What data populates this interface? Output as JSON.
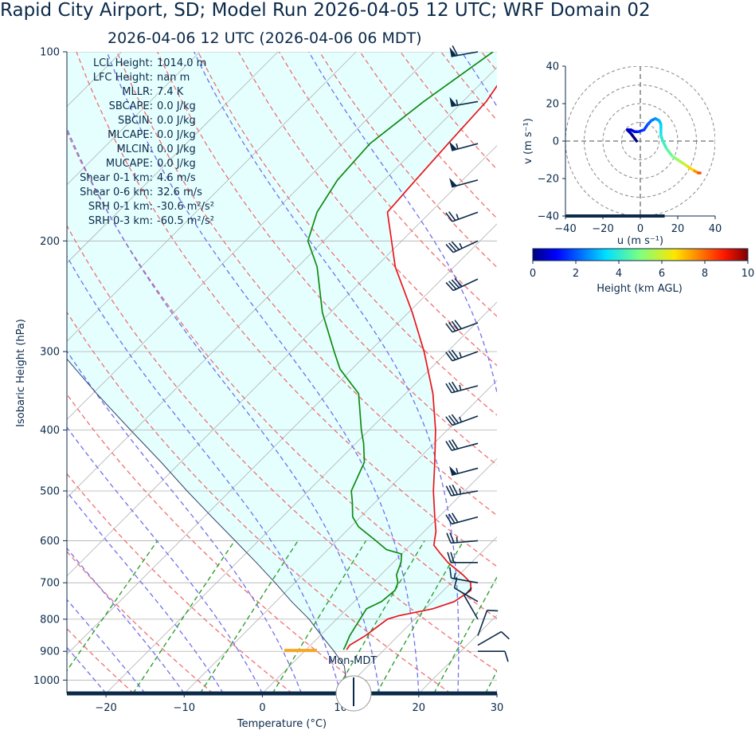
{
  "title": "Rapid City Airport, SD; Model Run 2026-04-05 12 UTC; WRF Domain 02",
  "subtitle": "2026-04-06 12 UTC  (2026-04-06 06 MDT)",
  "stats": [
    {
      "label": "LCL Height:",
      "value": "1014.0 m"
    },
    {
      "label": "LFC Height:",
      "value": "nan m"
    },
    {
      "label": "MLLR:",
      "value": "7.4 K"
    },
    {
      "label": "SBCAPE:",
      "value": "0.0 J/kg"
    },
    {
      "label": "SBCIN:",
      "value": "0.0 J/kg"
    },
    {
      "label": "MLCAPE:",
      "value": "0.0 J/kg"
    },
    {
      "label": "MLCIN:",
      "value": "0.0 J/kg"
    },
    {
      "label": "MUCAPE:",
      "value": "0.0 J/kg"
    },
    {
      "label": "Shear 0-1 km:",
      "value": "4.6 m/s"
    },
    {
      "label": "Shear 0-6 km:",
      "value": "32.6 m/s"
    },
    {
      "label": "SRH 0-1 km:",
      "value": "-30.6 m²/s²"
    },
    {
      "label": "SRH 0-3 km:",
      "value": "-60.5 m²/s²"
    }
  ],
  "local_time_label": "Mon-MDT",
  "colors": {
    "temperature": "#e8141a",
    "dewpoint": "#108a10",
    "cape_shade": "#e0ffff",
    "text": "#0b2a4a",
    "dry_adiabat": "#f07070",
    "moist_adiabat": "#7070f0",
    "mixing_ratio": "#30a030"
  },
  "chart_data": [
    {
      "type": "skew-t",
      "xlabel": "Temperature (°C)",
      "ylabel": "Isobaric Height (hPa)",
      "xlim": [
        -25,
        30
      ],
      "ylim": [
        1050,
        100
      ],
      "xticks": [
        -20,
        -10,
        0,
        10,
        20,
        30
      ],
      "yticks": [
        1000,
        900,
        800,
        700,
        600,
        500,
        400,
        300,
        200,
        100
      ],
      "skew": 35,
      "series": [
        {
          "role": "temperature",
          "p": [
            895,
            880,
            850,
            800,
            790,
            770,
            750,
            720,
            700,
            680,
            650,
            630,
            610,
            600,
            580,
            550,
            500,
            450,
            400,
            350,
            300,
            260,
            220,
            180,
            160,
            140,
            120,
            100
          ],
          "t": [
            5.2,
            5.0,
            5.8,
            6.5,
            7.5,
            11.0,
            12.8,
            13.5,
            12.5,
            10.5,
            7.0,
            5.0,
            3.0,
            2.5,
            1.5,
            -0.5,
            -4.0,
            -7.5,
            -11.5,
            -16.5,
            -23.0,
            -29.5,
            -37.5,
            -45.5,
            -46.0,
            -46.5,
            -47.0,
            -49.0
          ]
        },
        {
          "role": "dewpoint",
          "p": [
            895,
            880,
            850,
            800,
            770,
            750,
            720,
            700,
            680,
            650,
            630,
            620,
            600,
            570,
            550,
            520,
            500,
            450,
            420,
            400,
            350,
            320,
            300,
            260,
            220,
            200,
            180,
            160,
            140,
            120,
            100
          ],
          "t": [
            4.8,
            4.5,
            3.8,
            3.0,
            2.5,
            3.5,
            3.8,
            3.2,
            2.0,
            1.0,
            0.0,
            -2.5,
            -5.0,
            -9.0,
            -11.0,
            -13.0,
            -14.5,
            -16.5,
            -19.0,
            -21.0,
            -26.0,
            -31.5,
            -34.5,
            -41.0,
            -47.5,
            -52.0,
            -54.5,
            -56.0,
            -56.5,
            -55.0,
            -52.5
          ]
        },
        {
          "role": "parcel",
          "p": [
            1050,
            1000,
            950,
            900,
            850,
            800,
            750,
            700,
            650,
            600,
            550,
            500,
            450,
            400,
            350,
            300,
            250,
            200,
            150,
            100
          ],
          "t": [
            12.5,
            9.0,
            7.0,
            3.8,
            0.2,
            -3.5,
            -8.0,
            -12.5,
            -17.5,
            -23.0,
            -29.0,
            -35.5,
            -42.5,
            -50.5,
            -59.5,
            -69.5,
            -81.0,
            -94.5,
            -111.0,
            -131.0
          ]
        }
      ],
      "lcl_pressure": 897,
      "wind_barbs": [
        {
          "p": 100,
          "speed_kt": 60,
          "dir": 260
        },
        {
          "p": 120,
          "speed_kt": 55,
          "dir": 260
        },
        {
          "p": 140,
          "speed_kt": 55,
          "dir": 255
        },
        {
          "p": 160,
          "speed_kt": 50,
          "dir": 255
        },
        {
          "p": 180,
          "speed_kt": 25,
          "dir": 250
        },
        {
          "p": 200,
          "speed_kt": 35,
          "dir": 245
        },
        {
          "p": 230,
          "speed_kt": 40,
          "dir": 245
        },
        {
          "p": 270,
          "speed_kt": 40,
          "dir": 250
        },
        {
          "p": 300,
          "speed_kt": 35,
          "dir": 250
        },
        {
          "p": 340,
          "speed_kt": 35,
          "dir": 255
        },
        {
          "p": 380,
          "speed_kt": 35,
          "dir": 250
        },
        {
          "p": 420,
          "speed_kt": 30,
          "dir": 255
        },
        {
          "p": 460,
          "speed_kt": 55,
          "dir": 255
        },
        {
          "p": 500,
          "speed_kt": 35,
          "dir": 260
        },
        {
          "p": 550,
          "speed_kt": 30,
          "dir": 255
        },
        {
          "p": 600,
          "speed_kt": 25,
          "dir": 265
        },
        {
          "p": 650,
          "speed_kt": 20,
          "dir": 270
        },
        {
          "p": 700,
          "speed_kt": 15,
          "dir": 280
        },
        {
          "p": 750,
          "speed_kt": 10,
          "dir": 300
        },
        {
          "p": 800,
          "speed_kt": 10,
          "dir": 330
        },
        {
          "p": 850,
          "speed_kt": 10,
          "dir": 20
        },
        {
          "p": 880,
          "speed_kt": 10,
          "dir": 60
        },
        {
          "p": 900,
          "speed_kt": 10,
          "dir": 90
        }
      ]
    },
    {
      "type": "hodograph",
      "xlabel": "u (m s⁻¹)",
      "ylabel": "v (m s⁻¹)",
      "xlim": [
        -40,
        40
      ],
      "ylim": [
        -40,
        40
      ],
      "xticks": [
        -40,
        -20,
        0,
        20,
        40
      ],
      "yticks": [
        -40,
        -20,
        0,
        20,
        40
      ],
      "rings": [
        10,
        20,
        30,
        40
      ],
      "u": [
        -2,
        -5,
        -7,
        -5,
        -3,
        -1,
        2,
        4,
        6,
        8,
        10,
        11,
        11,
        11,
        12,
        14,
        17,
        20,
        23,
        26,
        29,
        31,
        32
      ],
      "v": [
        0,
        4,
        6,
        6,
        5,
        5,
        6,
        9,
        11,
        12,
        11,
        9,
        6,
        3,
        0,
        -4,
        -8,
        -10,
        -12,
        -14,
        -16,
        -17,
        -17
      ],
      "height_km": [
        0.0,
        0.3,
        0.6,
        0.9,
        1.2,
        1.5,
        1.8,
        2.1,
        2.4,
        2.7,
        3.0,
        3.3,
        3.6,
        3.9,
        4.2,
        4.6,
        5.0,
        5.5,
        6.0,
        6.8,
        7.5,
        8.2,
        9.0
      ],
      "colorbar": {
        "label": "Height (km AGL)",
        "ticks": [
          0,
          2,
          4,
          6,
          8,
          10
        ],
        "range": [
          0,
          10
        ],
        "colormap": "jet"
      }
    }
  ]
}
